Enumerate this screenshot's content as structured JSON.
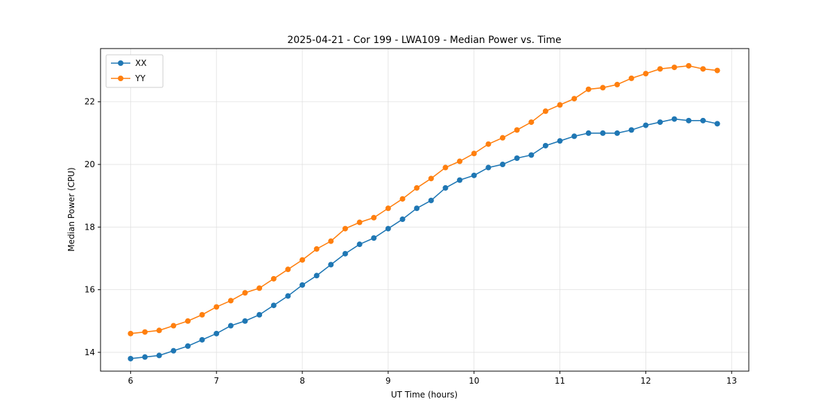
{
  "chart_data": {
    "type": "line",
    "title": "2025-04-21 - Cor 199 - LWA109 - Median Power vs. Time",
    "xlabel": "UT Time (hours)",
    "ylabel": "Median Power (CPU)",
    "xlim": [
      5.65,
      13.2
    ],
    "ylim": [
      13.4,
      23.7
    ],
    "x_ticks": [
      6,
      7,
      8,
      9,
      10,
      11,
      12,
      13
    ],
    "y_ticks": [
      14,
      16,
      18,
      20,
      22
    ],
    "grid": true,
    "legend_position": "upper left",
    "colors": {
      "grid": "#e0e0e0",
      "spine": "#000000",
      "legend_border": "#cccccc"
    },
    "x": [
      6.0,
      6.167,
      6.333,
      6.5,
      6.667,
      6.833,
      7.0,
      7.167,
      7.333,
      7.5,
      7.667,
      7.833,
      8.0,
      8.167,
      8.333,
      8.5,
      8.667,
      8.833,
      9.0,
      9.167,
      9.333,
      9.5,
      9.667,
      9.833,
      10.0,
      10.167,
      10.333,
      10.5,
      10.667,
      10.833,
      11.0,
      11.167,
      11.333,
      11.5,
      11.667,
      11.833,
      12.0,
      12.167,
      12.333,
      12.5,
      12.667,
      12.833
    ],
    "series": [
      {
        "name": "XX",
        "color": "#1f77b4",
        "values": [
          13.8,
          13.85,
          13.9,
          14.05,
          14.2,
          14.4,
          14.6,
          14.85,
          15.0,
          15.2,
          15.5,
          15.8,
          16.15,
          16.45,
          16.8,
          17.15,
          17.45,
          17.65,
          17.95,
          18.25,
          18.6,
          18.85,
          19.25,
          19.5,
          19.65,
          19.9,
          20.0,
          20.2,
          20.3,
          20.6,
          20.75,
          20.9,
          21.0,
          21.0,
          21.0,
          21.1,
          21.25,
          21.35,
          21.45,
          21.4,
          21.4,
          21.3
        ]
      },
      {
        "name": "YY",
        "color": "#ff7f0e",
        "values": [
          14.6,
          14.65,
          14.7,
          14.85,
          15.0,
          15.2,
          15.45,
          15.65,
          15.9,
          16.05,
          16.35,
          16.65,
          16.95,
          17.3,
          17.55,
          17.95,
          18.15,
          18.3,
          18.6,
          18.9,
          19.25,
          19.55,
          19.9,
          20.1,
          20.35,
          20.65,
          20.85,
          21.1,
          21.35,
          21.7,
          21.9,
          22.1,
          22.4,
          22.45,
          22.55,
          22.75,
          22.9,
          23.05,
          23.1,
          23.15,
          23.05,
          23.0
        ]
      }
    ]
  }
}
